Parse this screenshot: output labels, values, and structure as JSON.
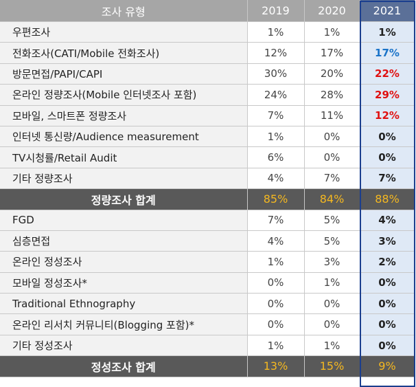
{
  "header": {
    "type": "조사 유형",
    "years": [
      "2019",
      "2020",
      "2021"
    ]
  },
  "colors": {
    "blue": "#1a73c8",
    "red": "#e01010",
    "gold": "#f5b820",
    "frame": "#1b3e8e"
  },
  "rows": [
    {
      "label": "우편조사",
      "v": [
        "1%",
        "1%",
        "1%"
      ],
      "c": ""
    },
    {
      "label": "전화조사(CATI/Mobile 전화조사)",
      "v": [
        "12%",
        "17%",
        "17%"
      ],
      "c": "blue"
    },
    {
      "label": "방문면접/PAPI/CAPI",
      "v": [
        "30%",
        "20%",
        "22%"
      ],
      "c": "red"
    },
    {
      "label": "온라인 정량조사(Mobile 인터넷조사 포함)",
      "v": [
        "24%",
        "28%",
        "29%"
      ],
      "c": "red"
    },
    {
      "label": "모바일, 스마트폰 정량조사",
      "v": [
        "7%",
        "11%",
        "12%"
      ],
      "c": "red"
    },
    {
      "label": "인터넷 통신량/Audience measurement",
      "v": [
        "1%",
        "0%",
        "0%"
      ],
      "c": ""
    },
    {
      "label": "TV시청률/Retail Audit",
      "v": [
        "6%",
        "0%",
        "0%"
      ],
      "c": ""
    },
    {
      "label": "기타 정량조사",
      "v": [
        "4%",
        "7%",
        "7%"
      ],
      "c": ""
    },
    {
      "label": "정량조사 합계",
      "v": [
        "85%",
        "84%",
        "88%"
      ],
      "total": true
    },
    {
      "label": "FGD",
      "v": [
        "7%",
        "5%",
        "4%"
      ],
      "c": ""
    },
    {
      "label": "심층면접",
      "v": [
        "4%",
        "5%",
        "3%"
      ],
      "c": ""
    },
    {
      "label": "온라인 정성조사",
      "v": [
        "1%",
        "3%",
        "2%"
      ],
      "c": ""
    },
    {
      "label": "모바일 정성조사*",
      "v": [
        "0%",
        "1%",
        "0%"
      ],
      "c": ""
    },
    {
      "label": "Traditional Ethnography",
      "v": [
        "0%",
        "0%",
        "0%"
      ],
      "c": ""
    },
    {
      "label": "온라인 리서치 커뮤니티(Blogging 포함)*",
      "v": [
        "0%",
        "0%",
        "0%"
      ],
      "c": ""
    },
    {
      "label": "기타 정성조사",
      "v": [
        "1%",
        "1%",
        "0%"
      ],
      "c": ""
    },
    {
      "label": "정성조사 합계",
      "v": [
        "13%",
        "15%",
        "9%"
      ],
      "total": true
    }
  ]
}
